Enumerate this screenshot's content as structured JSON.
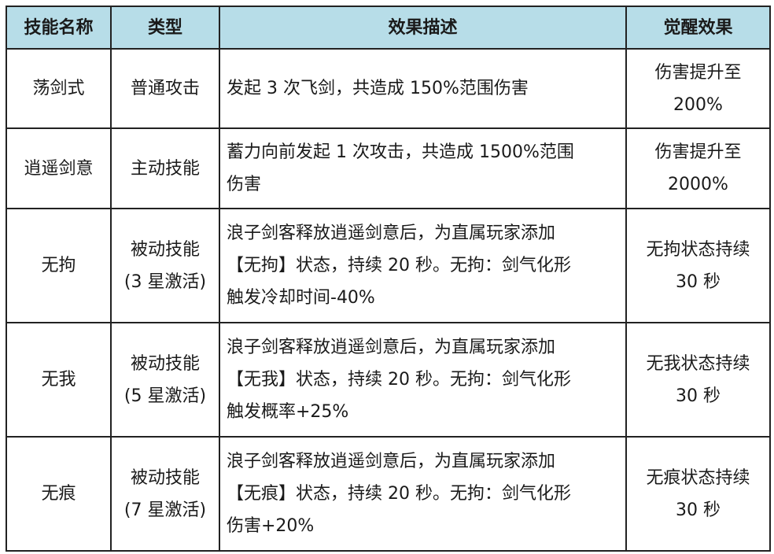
{
  "header_color": "#b7dde8",
  "headers": [
    "技能名称",
    "类型",
    "效果描述",
    "觉醒效果"
  ],
  "rows": [
    {
      "name": "荡剑式",
      "type": [
        "普通攻击"
      ],
      "desc": [
        "发起 3 次飞剑，共造成 150%范围伤害"
      ],
      "awaken": [
        "伤害提升至",
        "200%"
      ]
    },
    {
      "name": "逍遥剑意",
      "type": [
        "主动技能"
      ],
      "desc": [
        "蓄力向前发起 1 次攻击，共造成 1500%范围",
        "伤害"
      ],
      "awaken": [
        "伤害提升至",
        "2000%"
      ]
    },
    {
      "name": "无拘",
      "type": [
        "被动技能",
        "(3 星激活)"
      ],
      "desc": [
        "浪子剑客释放逍遥剑意后，为直属玩家添加",
        "【无拘】状态，持续 20 秒。无拘：剑气化形",
        "触发冷却时间-40%"
      ],
      "awaken": [
        "无拘状态持续",
        "30 秒"
      ]
    },
    {
      "name": "无我",
      "type": [
        "被动技能",
        "(5 星激活)"
      ],
      "desc": [
        "浪子剑客释放逍遥剑意后，为直属玩家添加",
        "【无我】状态，持续 20 秒。无拘：剑气化形",
        "触发概率+25%"
      ],
      "awaken": [
        "无我状态持续",
        "30 秒"
      ]
    },
    {
      "name": "无痕",
      "type": [
        "被动技能",
        "(7 星激活)"
      ],
      "desc": [
        "浪子剑客释放逍遥剑意后，为直属玩家添加",
        "【无痕】状态，持续 20 秒。无拘：剑气化形",
        "伤害+20%"
      ],
      "awaken": [
        "无痕状态持续",
        "30 秒"
      ]
    }
  ]
}
